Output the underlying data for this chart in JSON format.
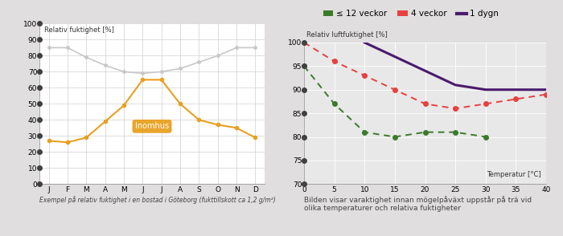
{
  "left": {
    "months": [
      "J",
      "F",
      "M",
      "A",
      "M",
      "J",
      "J",
      "A",
      "S",
      "O",
      "N",
      "D"
    ],
    "outdoor": [
      85,
      85,
      79,
      74,
      70,
      69,
      70,
      72,
      76,
      80,
      85,
      85
    ],
    "indoor": [
      27,
      26,
      29,
      39,
      49,
      65,
      65,
      50,
      40,
      37,
      35,
      29
    ],
    "outdoor_color": "#c8c8c8",
    "indoor_color": "#e8a020",
    "ylabel": "Relativ fuktighet [%]",
    "ylim": [
      0,
      100
    ],
    "yticks": [
      0,
      10,
      20,
      30,
      40,
      50,
      60,
      70,
      80,
      90,
      100
    ],
    "caption": "Exempel på relativ fuktighet i en bostad i Göteborg (fukttillskott ca 1,2 g/m²)",
    "inomhus_label": "Inomhus",
    "bg_color": "#ffffff"
  },
  "right": {
    "green_x": [
      0,
      5,
      10,
      15,
      20,
      25,
      30
    ],
    "green_y": [
      95,
      87,
      81,
      80,
      81,
      81,
      80
    ],
    "red_x": [
      0,
      5,
      10,
      15,
      20,
      25,
      30,
      35,
      40
    ],
    "red_y": [
      100,
      96,
      93,
      90,
      87,
      86,
      87,
      88,
      89
    ],
    "purple_x": [
      10,
      15,
      20,
      25,
      30,
      35,
      40
    ],
    "purple_y": [
      100,
      97,
      94,
      91,
      90,
      90,
      90
    ],
    "green_color": "#3a7a2a",
    "red_color": "#e84040",
    "purple_color": "#4a1a6e",
    "ylabel": "Relativ luftfuktighet [%]",
    "xlabel": "Temperatur [°C]",
    "ylim": [
      70,
      100
    ],
    "yticks": [
      70,
      75,
      80,
      85,
      90,
      95,
      100
    ],
    "xlim": [
      0,
      40
    ],
    "xticks": [
      0,
      5,
      10,
      15,
      20,
      25,
      30,
      35,
      40
    ],
    "caption": "Bilden visar varaktighet innan mögelpåväxt uppstår på trä vid\nolika temperaturer och relativa fuktigheter",
    "legend_labels": [
      "≤ 12 veckor",
      "4 veckor",
      "1 dygn"
    ],
    "bg_color": "#e8e8e8"
  },
  "bg_color": "#e0dede"
}
